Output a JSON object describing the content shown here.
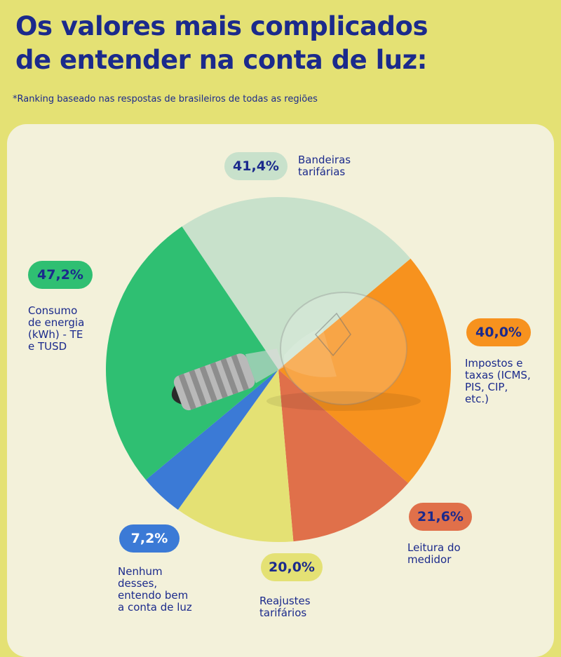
{
  "title_line1": "Os valores mais complicados",
  "title_line2": "de entender na conta de luz:",
  "subtitle": "*Ranking baseado nas respostas de brasileiros de todas as regiões",
  "chart_data": {
    "type": "pie",
    "title": "Os valores mais complicados de entender na conta de luz:",
    "subtitle": "*Ranking baseado nas respostas de brasileiros de todas as regiões",
    "unit": "%",
    "slices": [
      {
        "label": "Bandeiras tarifárias",
        "value": 41.4,
        "display": "41,4%",
        "color": "#c8e1cb",
        "text_color": "#1b2a8c"
      },
      {
        "label": "Impostos e taxas (ICMS, PIS, CIP, etc.)",
        "value": 40.0,
        "display": "40,0%",
        "color": "#f7921e",
        "text_color": "#1b2a8c"
      },
      {
        "label": "Leitura do medidor",
        "value": 21.6,
        "display": "21,6%",
        "color": "#e0704a",
        "text_color": "#1b2a8c"
      },
      {
        "label": "Reajustes tarifários",
        "value": 20.0,
        "display": "20,0%",
        "color": "#e4e174",
        "text_color": "#1b2a8c"
      },
      {
        "label": "Nenhum desses, entendo bem a conta de luz",
        "value": 7.2,
        "display": "7,2%",
        "color": "#3b7ad6",
        "text_color": "#ffffff"
      },
      {
        "label": "Consumo de energia (kWh) - TE e TUSD",
        "value": 47.2,
        "display": "47,2%",
        "color": "#2fbf72",
        "text_color": "#1b2a8c"
      }
    ],
    "legend": "none",
    "labels_text": [
      [
        "Bandeiras",
        "tarifárias"
      ],
      [
        "Impostos e",
        "taxas (ICMS,",
        "PIS, CIP,",
        "etc.)"
      ],
      [
        "Leitura do",
        "medidor"
      ],
      [
        "Reajustes",
        "tarifários"
      ],
      [
        "Nenhum",
        "desses,",
        "entendo bem",
        "a conta de luz"
      ],
      [
        "Consumo",
        "de energia",
        "(kWh) - TE",
        "e TUSD"
      ]
    ]
  }
}
